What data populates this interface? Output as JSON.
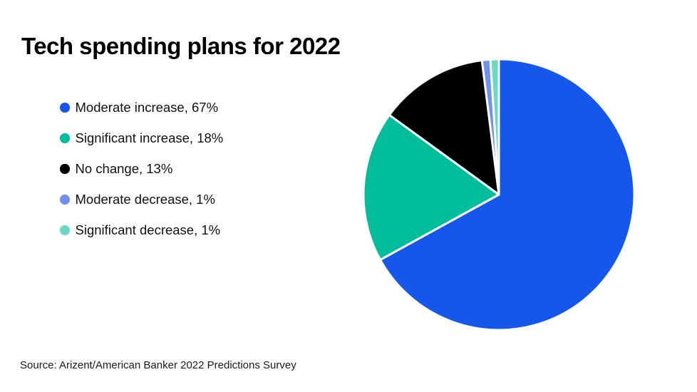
{
  "title": "Tech spending plans for 2022",
  "source": "Source: Arizent/American Banker 2022 Predictions Survey",
  "colors": {
    "background": "#ffffff",
    "title_text": "#000000",
    "body_text": "#111111",
    "slice_gap": "#ffffff"
  },
  "chart_data": {
    "type": "pie",
    "title": "Tech spending plans for 2022",
    "start_angle_deg": 0,
    "direction": "clockwise",
    "legend_position": "left",
    "legend_value_suffix": "%",
    "slices": [
      {
        "label": "Moderate increase",
        "percent": 67,
        "color": "#1657EB"
      },
      {
        "label": "Significant increase",
        "percent": 18,
        "color": "#00BE9B"
      },
      {
        "label": "No change",
        "percent": 13,
        "color": "#000000"
      },
      {
        "label": "Moderate decrease",
        "percent": 1,
        "color": "#6F92EF"
      },
      {
        "label": "Significant decrease",
        "percent": 1,
        "color": "#69DAC0"
      }
    ]
  }
}
